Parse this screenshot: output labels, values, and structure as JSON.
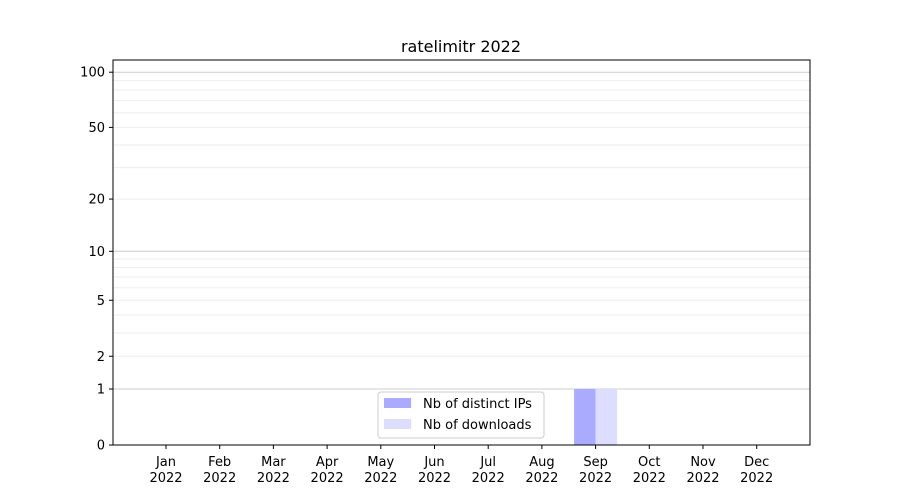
{
  "chart_data": {
    "type": "bar",
    "title": "ratelimitr 2022",
    "xlabel": "",
    "ylabel": "",
    "y_scale": "log(1+y)",
    "ylim": [
      0,
      116
    ],
    "y_ticks": [
      0,
      1,
      2,
      5,
      10,
      20,
      50,
      100
    ],
    "y_major_grid": [
      1,
      10,
      100
    ],
    "y_minor_grid": [
      3,
      4,
      6,
      7,
      8,
      9,
      30,
      40,
      60,
      70,
      80,
      90,
      2,
      5,
      20,
      50
    ],
    "grid": true,
    "categories": [
      "Jan\n2022",
      "Feb\n2022",
      "Mar\n2022",
      "Apr\n2022",
      "May\n2022",
      "Jun\n2022",
      "Jul\n2022",
      "Aug\n2022",
      "Sep\n2022",
      "Oct\n2022",
      "Nov\n2022",
      "Dec\n2022"
    ],
    "series": [
      {
        "name": "Nb of distinct IPs",
        "color": "#aaaaff",
        "values": [
          0,
          0,
          0,
          0,
          0,
          0,
          0,
          0,
          1,
          0,
          0,
          0
        ]
      },
      {
        "name": "Nb of downloads",
        "color": "#ddddff",
        "values": [
          0,
          0,
          0,
          0,
          0,
          0,
          0,
          0,
          1,
          0,
          0,
          0
        ]
      }
    ],
    "legend_placement": "lower-center"
  }
}
